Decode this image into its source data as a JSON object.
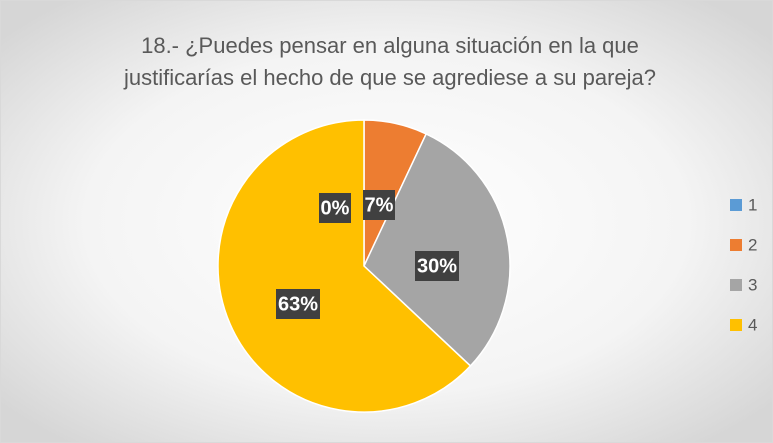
{
  "chart_data": {
    "type": "pie",
    "title": "18.- ¿Puedes pensar en alguna situación en la que justificarías el hecho de que se agrediese a su pareja?",
    "categories": [
      "1",
      "2",
      "3",
      "4"
    ],
    "values": [
      0,
      7,
      30,
      63
    ],
    "value_labels": [
      "0%",
      "7%",
      "30%",
      "63%"
    ],
    "colors": [
      "#5b9bd5",
      "#ed7d31",
      "#a5a5a5",
      "#ffc000"
    ],
    "legend": "right"
  }
}
